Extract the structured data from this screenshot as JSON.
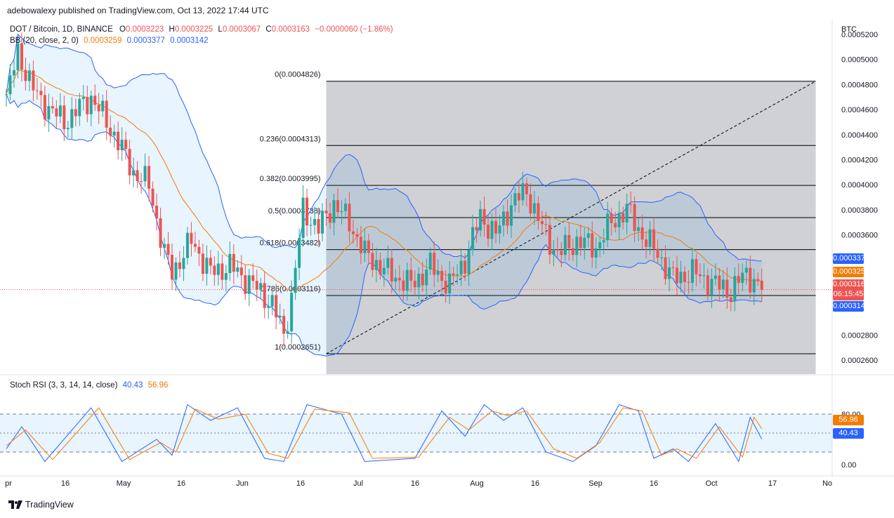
{
  "publisher_line": "adebowalexy published on TradingView.com, Oct 13, 2022 17:44 UTC",
  "header": {
    "symbol": "DOT / Bitcoin, 1D, BINANCE",
    "open_label": "O",
    "open": "0.0003223",
    "high_label": "H",
    "high": "0.0003225",
    "low_label": "L",
    "low": "0.0003067",
    "close_label": "C",
    "close": "0.0003163",
    "change": "−0.0000060 (−1.86%)"
  },
  "bb_legend": {
    "label": "BB (20, close, 2, 0)",
    "basis": "0.0003259",
    "upper": "0.0003377",
    "lower": "0.0003142"
  },
  "stoch_legend": {
    "label": "Stoch RSI (3, 3, 14, 14, close)",
    "k": "40.43",
    "d": "56.96"
  },
  "price_axis": {
    "currency": "BTC",
    "ticks": [
      "0.0005200",
      "0.0005000",
      "0.0004800",
      "0.0004600",
      "0.0004400",
      "0.0004200",
      "0.0004000",
      "0.0003800",
      "0.0003600",
      "0.0002800",
      "0.0002600"
    ],
    "tags": {
      "upper": {
        "value": "0.0003377",
        "color": "#2962ff"
      },
      "basis": {
        "value": "0.0003259",
        "color": "#f57c00"
      },
      "price": {
        "value": "0.0003163",
        "countdown": "06:15:45",
        "color": "#ef5350"
      },
      "lower": {
        "value": "0.0003142",
        "color": "#2962ff"
      }
    }
  },
  "stoch_axis": {
    "ticks": [
      "80.00",
      "0.00"
    ],
    "tags": {
      "d": {
        "value": "56.96",
        "color": "#f57c00"
      },
      "k": {
        "value": "40.43",
        "color": "#2962ff"
      }
    }
  },
  "time_axis": [
    "pr",
    "16",
    "May",
    "16",
    "Jun",
    "16",
    "Jul",
    "16",
    "Aug",
    "16",
    "Sep",
    "16",
    "Oct",
    "17",
    "No"
  ],
  "fib_levels": [
    {
      "label": "0(0.0004826)",
      "value": 0.0004826
    },
    {
      "label": "0.236(0.0004313)",
      "value": 0.0004313
    },
    {
      "label": "0.382(0.0003995)",
      "value": 0.0003995
    },
    {
      "label": "0.5(0.0003738)",
      "value": 0.0003738
    },
    {
      "label": "0.618(0.0003482)",
      "value": 0.0003482
    },
    {
      "label": "0.786(0.0003116)",
      "value": 0.0003116
    },
    {
      "label": "1(0.0002651)",
      "value": 0.0002651
    }
  ],
  "brand": "TradingView",
  "colors": {
    "up": "#26a69a",
    "down": "#ef5350",
    "basis": "#f57c00",
    "band": "#2962ff",
    "fib_zone": "#cfd1d4"
  },
  "chart_data": [
    {
      "type": "candlestick",
      "title": "DOT / Bitcoin, 1D, BINANCE",
      "ylim": [
        0.00025,
        0.000525
      ],
      "x_range": [
        "2022-03-31",
        "2022-11-01"
      ],
      "last_close": 0.0003163,
      "bollinger": {
        "period": 20,
        "stddev": 2,
        "basis": 0.0003259,
        "upper": 0.0003377,
        "lower": 0.0003142
      },
      "fibonacci_retracement": {
        "from": {
          "date": "2022-06-22",
          "price": 0.0002651
        },
        "to": {
          "date": "2022-10-27",
          "price": 0.0004826
        }
      },
      "close_path": [
        {
          "date": "2022-03-31",
          "close": 0.00047
        },
        {
          "date": "2022-04-03",
          "close": 0.000505
        },
        {
          "date": "2022-04-08",
          "close": 0.00047
        },
        {
          "date": "2022-04-15",
          "close": 0.00045
        },
        {
          "date": "2022-04-22",
          "close": 0.00047
        },
        {
          "date": "2022-04-28",
          "close": 0.00044
        },
        {
          "date": "2022-05-03",
          "close": 0.00041
        },
        {
          "date": "2022-05-07",
          "close": 0.0004
        },
        {
          "date": "2022-05-11",
          "close": 0.000345
        },
        {
          "date": "2022-05-13",
          "close": 0.00033
        },
        {
          "date": "2022-05-18",
          "close": 0.000355
        },
        {
          "date": "2022-05-23",
          "close": 0.00033
        },
        {
          "date": "2022-05-28",
          "close": 0.000335
        },
        {
          "date": "2022-06-03",
          "close": 0.00032
        },
        {
          "date": "2022-06-08",
          "close": 0.000305
        },
        {
          "date": "2022-06-11",
          "close": 0.00028
        },
        {
          "date": "2022-06-13",
          "close": 0.00031
        },
        {
          "date": "2022-06-16",
          "close": 0.00038
        },
        {
          "date": "2022-06-20",
          "close": 0.000365
        },
        {
          "date": "2022-06-24",
          "close": 0.000385
        },
        {
          "date": "2022-06-28",
          "close": 0.00037
        },
        {
          "date": "2022-07-02",
          "close": 0.000345
        },
        {
          "date": "2022-07-08",
          "close": 0.00033
        },
        {
          "date": "2022-07-14",
          "close": 0.00032
        },
        {
          "date": "2022-07-19",
          "close": 0.000335
        },
        {
          "date": "2022-07-24",
          "close": 0.00032
        },
        {
          "date": "2022-07-28",
          "close": 0.00034
        },
        {
          "date": "2022-08-01",
          "close": 0.000375
        },
        {
          "date": "2022-08-05",
          "close": 0.00036
        },
        {
          "date": "2022-08-09",
          "close": 0.000385
        },
        {
          "date": "2022-08-13",
          "close": 0.000395
        },
        {
          "date": "2022-08-17",
          "close": 0.000365
        },
        {
          "date": "2022-08-21",
          "close": 0.000345
        },
        {
          "date": "2022-08-26",
          "close": 0.000355
        },
        {
          "date": "2022-08-31",
          "close": 0.00035
        },
        {
          "date": "2022-09-04",
          "close": 0.00037
        },
        {
          "date": "2022-09-08",
          "close": 0.00038
        },
        {
          "date": "2022-09-12",
          "close": 0.00036
        },
        {
          "date": "2022-09-16",
          "close": 0.000345
        },
        {
          "date": "2022-09-20",
          "close": 0.000325
        },
        {
          "date": "2022-09-25",
          "close": 0.00033
        },
        {
          "date": "2022-09-30",
          "close": 0.000322
        },
        {
          "date": "2022-10-05",
          "close": 0.000315
        },
        {
          "date": "2022-10-09",
          "close": 0.00033
        },
        {
          "date": "2022-10-13",
          "close": 0.000316
        }
      ]
    },
    {
      "type": "line",
      "title": "Stoch RSI (3, 3, 14, 14, close)",
      "ylim": [
        0,
        100
      ],
      "bands": [
        20,
        50,
        80
      ],
      "last": {
        "k": 40.43,
        "d": 56.96
      },
      "series": [
        {
          "name": "K",
          "color": "#2962ff",
          "points": [
            {
              "date": "2022-03-31",
              "v": 25
            },
            {
              "date": "2022-04-04",
              "v": 60
            },
            {
              "date": "2022-04-10",
              "v": 5
            },
            {
              "date": "2022-04-22",
              "v": 90
            },
            {
              "date": "2022-04-30",
              "v": 5
            },
            {
              "date": "2022-05-09",
              "v": 40
            },
            {
              "date": "2022-05-13",
              "v": 15
            },
            {
              "date": "2022-05-17",
              "v": 95
            },
            {
              "date": "2022-05-23",
              "v": 70
            },
            {
              "date": "2022-05-30",
              "v": 90
            },
            {
              "date": "2022-06-06",
              "v": 10
            },
            {
              "date": "2022-06-11",
              "v": 5
            },
            {
              "date": "2022-06-17",
              "v": 95
            },
            {
              "date": "2022-06-26",
              "v": 80
            },
            {
              "date": "2022-07-02",
              "v": 5
            },
            {
              "date": "2022-07-15",
              "v": 10
            },
            {
              "date": "2022-07-22",
              "v": 85
            },
            {
              "date": "2022-07-28",
              "v": 45
            },
            {
              "date": "2022-08-02",
              "v": 95
            },
            {
              "date": "2022-08-07",
              "v": 70
            },
            {
              "date": "2022-08-12",
              "v": 90
            },
            {
              "date": "2022-08-18",
              "v": 20
            },
            {
              "date": "2022-08-25",
              "v": 5
            },
            {
              "date": "2022-08-31",
              "v": 30
            },
            {
              "date": "2022-09-06",
              "v": 95
            },
            {
              "date": "2022-09-11",
              "v": 85
            },
            {
              "date": "2022-09-15",
              "v": 10
            },
            {
              "date": "2022-09-20",
              "v": 25
            },
            {
              "date": "2022-09-24",
              "v": 5
            },
            {
              "date": "2022-10-01",
              "v": 65
            },
            {
              "date": "2022-10-07",
              "v": 5
            },
            {
              "date": "2022-10-10",
              "v": 75
            },
            {
              "date": "2022-10-13",
              "v": 40.43
            }
          ]
        },
        {
          "name": "D",
          "color": "#f57c00",
          "points": [
            {
              "date": "2022-03-31",
              "v": 30
            },
            {
              "date": "2022-04-05",
              "v": 55
            },
            {
              "date": "2022-04-12",
              "v": 8
            },
            {
              "date": "2022-04-24",
              "v": 90
            },
            {
              "date": "2022-05-02",
              "v": 8
            },
            {
              "date": "2022-05-10",
              "v": 35
            },
            {
              "date": "2022-05-14",
              "v": 20
            },
            {
              "date": "2022-05-19",
              "v": 88
            },
            {
              "date": "2022-05-25",
              "v": 72
            },
            {
              "date": "2022-06-01",
              "v": 80
            },
            {
              "date": "2022-06-07",
              "v": 18
            },
            {
              "date": "2022-06-12",
              "v": 10
            },
            {
              "date": "2022-06-19",
              "v": 88
            },
            {
              "date": "2022-06-28",
              "v": 82
            },
            {
              "date": "2022-07-04",
              "v": 10
            },
            {
              "date": "2022-07-16",
              "v": 12
            },
            {
              "date": "2022-07-24",
              "v": 75
            },
            {
              "date": "2022-07-29",
              "v": 55
            },
            {
              "date": "2022-08-04",
              "v": 85
            },
            {
              "date": "2022-08-08",
              "v": 78
            },
            {
              "date": "2022-08-13",
              "v": 85
            },
            {
              "date": "2022-08-20",
              "v": 25
            },
            {
              "date": "2022-08-26",
              "v": 10
            },
            {
              "date": "2022-09-01",
              "v": 35
            },
            {
              "date": "2022-09-07",
              "v": 90
            },
            {
              "date": "2022-09-12",
              "v": 85
            },
            {
              "date": "2022-09-17",
              "v": 15
            },
            {
              "date": "2022-09-21",
              "v": 25
            },
            {
              "date": "2022-09-26",
              "v": 10
            },
            {
              "date": "2022-10-02",
              "v": 60
            },
            {
              "date": "2022-10-08",
              "v": 12
            },
            {
              "date": "2022-10-11",
              "v": 75
            },
            {
              "date": "2022-10-13",
              "v": 56.96
            }
          ]
        }
      ]
    }
  ]
}
